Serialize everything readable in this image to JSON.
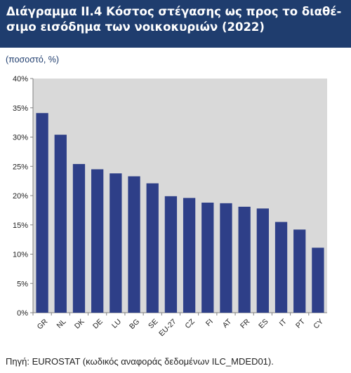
{
  "header": {
    "title": "Διάγραμμα ΙΙ.4 Κόστος στέγασης ως προς το διαθέ-σιμο εισόδημα των νοικοκυριών (2022)"
  },
  "unit_label": "(ποσοστό, %)",
  "source_note": "Πηγή: EUROSTAT (κωδικός αναφοράς δεδομένων ILC_MDED01).",
  "colors": {
    "header_bg": "#1f3d6e",
    "plot_bg": "#d9d9d9",
    "bar": "#2e3f88"
  },
  "chart_data": {
    "type": "bar",
    "categories": [
      "GR",
      "NL",
      "DK",
      "DE",
      "LU",
      "BG",
      "SE",
      "EU-27",
      "CZ",
      "FI",
      "AT",
      "FR",
      "ES",
      "IT",
      "PT",
      "CY"
    ],
    "values": [
      34.1,
      30.4,
      25.4,
      24.5,
      23.8,
      23.3,
      22.1,
      19.9,
      19.6,
      18.8,
      18.7,
      18.1,
      17.8,
      15.5,
      14.2,
      11.1
    ],
    "ylim": [
      0,
      40
    ],
    "yticks": [
      "0%",
      "5%",
      "10%",
      "15%",
      "20%",
      "25%",
      "30%",
      "35%",
      "40%"
    ],
    "grid": false,
    "legend": "none"
  }
}
